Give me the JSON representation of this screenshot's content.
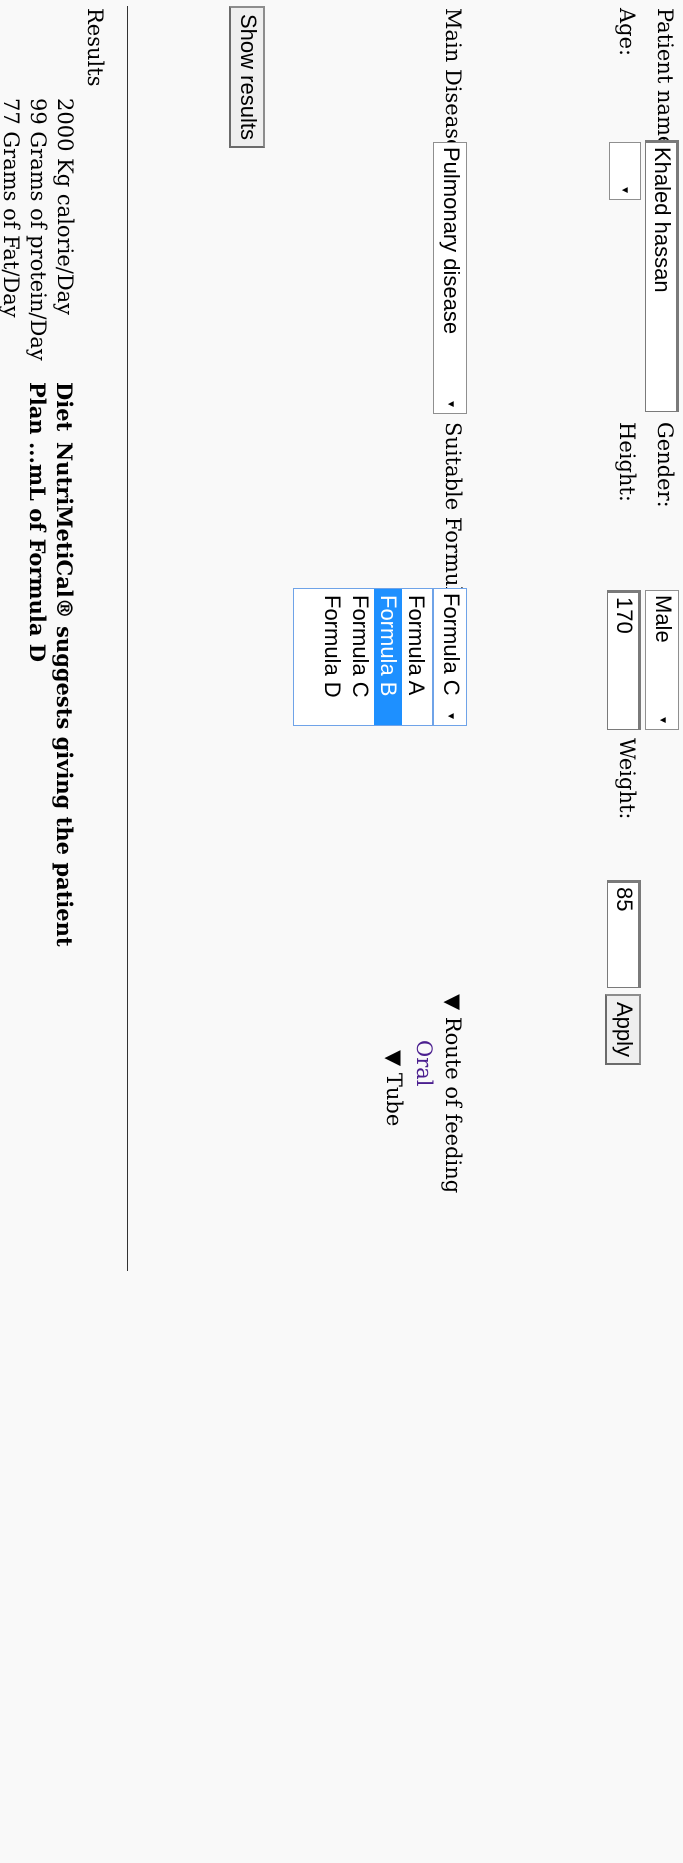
{
  "form": {
    "patient_name_label": "Patient name",
    "patient_name_value": "Khaled hassan",
    "gender_label": "Gender:",
    "gender_value": "Male",
    "age_label": "Age:",
    "age_value": "",
    "height_label": "Height:",
    "height_value": "170",
    "weight_label": "Weight:",
    "weight_value": "85",
    "apply_label": "Apply",
    "main_disease_label": "Main Disease:",
    "main_disease_value": "Pulmonary disease",
    "suitable_formula_label": "Suitable Formula:",
    "suitable_formula_value": "Formula C",
    "formula_options": [
      "Formula A",
      "Formula B",
      "Formula C",
      "Formula D"
    ],
    "highlighted_option": "Formula B",
    "show_results_label": "Show results"
  },
  "route": {
    "title": "Route of feeding",
    "oral": "Oral",
    "tube": "Tube"
  },
  "results": {
    "title": "Results",
    "calories": "2000 Kg calorie/Day",
    "protein": "99 Grams of protein/Day",
    "fat": "77 Grams of Fat/Day",
    "diet_plan_word1": "Diet",
    "diet_plan_word2": "Plan",
    "suggestion": "NutriMetiCal® suggests giving the patient",
    "suggestion_line2": "...mL of Formula D"
  },
  "colors": {
    "background": "#f9f9f9",
    "highlight": "#1e90ff",
    "link_visited": "#4b1f8f"
  }
}
